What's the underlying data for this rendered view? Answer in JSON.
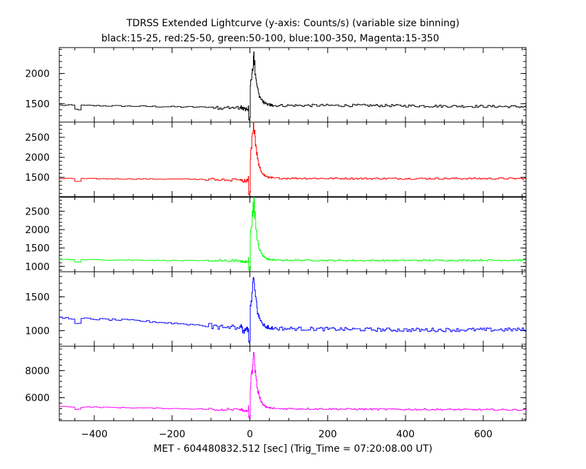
{
  "chart_data": {
    "type": "line",
    "title": "TDRSS Extended Lightcurve (y-axis: Counts/s) (variable size binning)",
    "subtitle": "black:15-25, red:25-50, green:50-100, blue:100-350, Magenta:15-350",
    "xlabel": "MET - 604480832.512 [sec] (Trig_Time = 07:20:08.00 UT)",
    "xlim": [
      -490,
      710
    ],
    "x_ticks": [
      -400,
      -200,
      0,
      200,
      400,
      600
    ],
    "x_tick_labels": [
      "−400",
      "−200",
      "0",
      "200",
      "400",
      "600"
    ],
    "grid": false,
    "panels": [
      {
        "name": "black:15-25",
        "color": "#000000",
        "ylim": [
          1195,
          2430
        ],
        "y_ticks": [
          1500,
          2000
        ],
        "y_tick_labels": [
          "1500",
          "2000"
        ],
        "baseline": [
          [
            -490,
            1475
          ],
          [
            -100,
            1440
          ],
          [
            -20,
            1430
          ],
          [
            30,
            1470
          ],
          [
            300,
            1470
          ],
          [
            710,
            1450
          ]
        ],
        "peak": 2300,
        "peak_x": 10,
        "dip": 1200,
        "noise": 22
      },
      {
        "name": "red:25-50",
        "color": "#ff0000",
        "ylim": [
          1020,
          2880
        ],
        "y_ticks": [
          1500,
          2000,
          2500
        ],
        "y_tick_labels": [
          "1500",
          "2000",
          "2500"
        ],
        "baseline": [
          [
            -490,
            1470
          ],
          [
            -100,
            1450
          ],
          [
            -20,
            1440
          ],
          [
            30,
            1480
          ],
          [
            300,
            1470
          ],
          [
            710,
            1470
          ]
        ],
        "peak": 2850,
        "peak_x": 10,
        "dip": 1030,
        "noise": 22
      },
      {
        "name": "green:50-100",
        "color": "#00ff00",
        "ylim": [
          855,
          2880
        ],
        "y_ticks": [
          1000,
          1500,
          2000,
          2500
        ],
        "y_tick_labels": [
          "1000",
          "1500",
          "2000",
          "2500"
        ],
        "baseline": [
          [
            -490,
            1190
          ],
          [
            -100,
            1150
          ],
          [
            -20,
            1150
          ],
          [
            30,
            1170
          ],
          [
            300,
            1160
          ],
          [
            710,
            1170
          ]
        ],
        "peak": 2800,
        "peak_x": 10,
        "dip": 870,
        "noise": 20
      },
      {
        "name": "blue:100-350",
        "color": "#0000ff",
        "ylim": [
          770,
          1870
        ],
        "y_ticks": [
          1000,
          1500
        ],
        "y_tick_labels": [
          "1000",
          "1500"
        ],
        "baseline": [
          [
            -490,
            1190
          ],
          [
            -300,
            1150
          ],
          [
            -100,
            1070
          ],
          [
            0,
            1040
          ],
          [
            100,
            1030
          ],
          [
            400,
            1010
          ],
          [
            710,
            1015
          ]
        ],
        "peak": 1780,
        "peak_x": 10,
        "dip": 800,
        "noise": 28
      },
      {
        "name": "Magenta:15-350",
        "color": "#ff00ff",
        "ylim": [
          4300,
          9800
        ],
        "y_ticks": [
          6000,
          8000
        ],
        "y_tick_labels": [
          "6000",
          "8000"
        ],
        "baseline": [
          [
            -490,
            5350
          ],
          [
            -100,
            5150
          ],
          [
            -20,
            5100
          ],
          [
            30,
            5200
          ],
          [
            300,
            5150
          ],
          [
            710,
            5100
          ]
        ],
        "peak": 9400,
        "peak_x": 10,
        "dip": 4450,
        "noise": 60
      }
    ]
  }
}
